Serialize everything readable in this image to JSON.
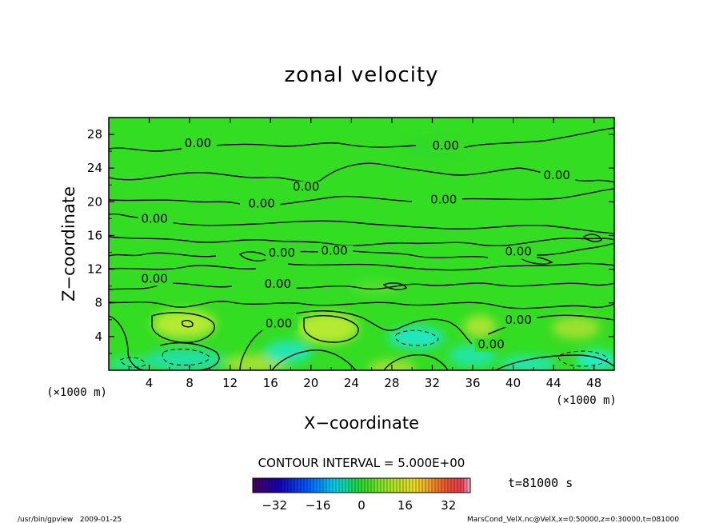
{
  "chart_data": {
    "type": "heatmap",
    "title": "zonal velocity",
    "xlabel": "X−coordinate",
    "ylabel": "Z−coordinate",
    "x_unit": "(×1000 m)",
    "y_unit": "(×1000 m)",
    "xlim": [
      0,
      50
    ],
    "ylim": [
      0,
      30
    ],
    "x_ticks": [
      4,
      8,
      12,
      16,
      20,
      24,
      28,
      32,
      36,
      40,
      44,
      48
    ],
    "y_ticks": [
      4,
      8,
      12,
      16,
      20,
      24,
      28
    ],
    "contour_interval": "CONTOUR INTERVAL = 5.000E+00",
    "time_label": "t=81000 s",
    "colorbar": {
      "min": -40,
      "max": 40,
      "ticks": [
        "−32",
        "−16",
        "0",
        "16",
        "32"
      ],
      "tick_values": [
        -32,
        -16,
        0,
        16,
        32
      ]
    },
    "contour_labels": [
      {
        "text": "0.00",
        "x": 7.5,
        "z": 26.5
      },
      {
        "text": "0.00",
        "x": 32,
        "z": 26.2
      },
      {
        "text": "0.00",
        "x": 43,
        "z": 22.7
      },
      {
        "text": "0.00",
        "x": 18.2,
        "z": 21.3
      },
      {
        "text": "0.00",
        "x": 13.8,
        "z": 19.3
      },
      {
        "text": "0.00",
        "x": 31.8,
        "z": 19.8
      },
      {
        "text": "0.00",
        "x": 3.2,
        "z": 17.5
      },
      {
        "text": "0.00",
        "x": 15.8,
        "z": 13.5
      },
      {
        "text": "0.00",
        "x": 21,
        "z": 13.7
      },
      {
        "text": "0.00",
        "x": 39.2,
        "z": 13.6
      },
      {
        "text": "0.00",
        "x": 3.2,
        "z": 10.4
      },
      {
        "text": "0.00",
        "x": 15.4,
        "z": 9.8
      },
      {
        "text": "0.00",
        "x": 15.5,
        "z": 5.1
      },
      {
        "text": "0.00",
        "x": 39.2,
        "z": 5.5
      },
      {
        "text": "0.00",
        "x": 36.5,
        "z": 2.6
      }
    ]
  },
  "footer": {
    "left": "/usr/bin/gpview   2009-01-25",
    "right": "MarsCond_VelX.nc@VelX,x=0:50000,z=0:30000,t=081000"
  },
  "colors": {
    "background_field": "#33dd22",
    "positive_patch": "#bbee33",
    "negative_patch": "#22eecc",
    "contour_line": "#000000"
  }
}
